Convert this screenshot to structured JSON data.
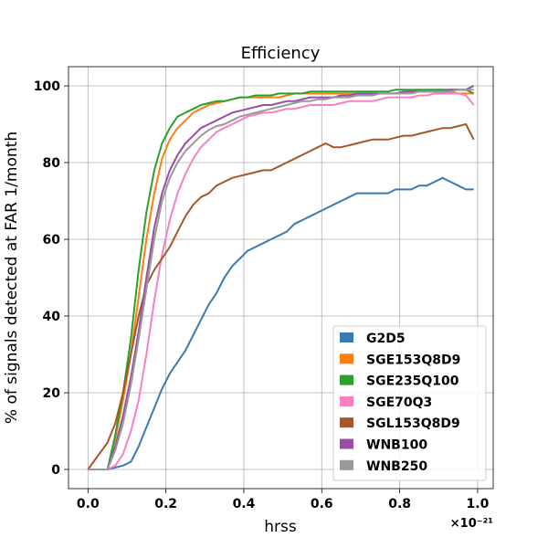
{
  "chart_data": {
    "type": "line",
    "title": "Efficiency",
    "xlabel": "hrss",
    "ylabel": "% of signals detected at FAR 1/month",
    "x_offset_label": "×10⁻²¹",
    "xlim": [
      -0.05,
      1.04
    ],
    "ylim": [
      -5,
      105
    ],
    "xticks": [
      0.0,
      0.2,
      0.4,
      0.6,
      0.8,
      1.0
    ],
    "xtick_labels": [
      "0.0",
      "0.2",
      "0.4",
      "0.6",
      "0.8",
      "1.0"
    ],
    "yticks": [
      0,
      20,
      40,
      60,
      80,
      100
    ],
    "ytick_labels": [
      "0",
      "20",
      "40",
      "60",
      "80",
      "100"
    ],
    "grid": true,
    "legend_position": "lower-right",
    "x": [
      0.0,
      0.05,
      0.07,
      0.09,
      0.11,
      0.13,
      0.15,
      0.17,
      0.19,
      0.21,
      0.23,
      0.25,
      0.27,
      0.29,
      0.31,
      0.33,
      0.35,
      0.37,
      0.39,
      0.41,
      0.43,
      0.45,
      0.47,
      0.49,
      0.51,
      0.53,
      0.55,
      0.57,
      0.59,
      0.61,
      0.63,
      0.65,
      0.67,
      0.69,
      0.71,
      0.73,
      0.75,
      0.77,
      0.79,
      0.81,
      0.83,
      0.85,
      0.87,
      0.89,
      0.91,
      0.93,
      0.95,
      0.97,
      0.99
    ],
    "series": [
      {
        "name": "G2D5",
        "color": "#3a7ab3",
        "values": [
          0,
          0,
          0.5,
          1,
          2,
          6,
          11,
          16,
          21,
          25,
          28,
          31,
          35,
          39,
          43,
          46,
          50,
          53,
          55,
          57,
          58,
          59,
          60,
          61,
          62,
          64,
          65,
          66,
          67,
          68,
          69,
          70,
          71,
          72,
          72,
          72,
          72,
          72,
          73,
          73,
          73,
          74,
          74,
          75,
          76,
          75,
          74,
          73,
          73
        ]
      },
      {
        "name": "SGE153Q8D9",
        "color": "#ff7f0e",
        "values": [
          0,
          0,
          8,
          18,
          30,
          45,
          60,
          72,
          81,
          86,
          89,
          91,
          93,
          94,
          95,
          95.5,
          96,
          96.5,
          97,
          97,
          97,
          97,
          97,
          97,
          97.5,
          98,
          98,
          98,
          98,
          98,
          98,
          98,
          98,
          98,
          98,
          98,
          98,
          98,
          98,
          98.5,
          98.5,
          98.5,
          98.5,
          98.5,
          98.5,
          98.5,
          98,
          98,
          98
        ]
      },
      {
        "name": "SGE235Q100",
        "color": "#2ca02c",
        "values": [
          0,
          0,
          9,
          20,
          34,
          52,
          67,
          78,
          85,
          89,
          92,
          93,
          94,
          95,
          95.5,
          96,
          96,
          96.5,
          97,
          97,
          97.5,
          97.5,
          97.5,
          98,
          98,
          98,
          98,
          98.5,
          98.5,
          98.5,
          98.5,
          98.5,
          98.5,
          98.5,
          98.5,
          98.5,
          98.5,
          98.5,
          99,
          99,
          99,
          99,
          99,
          99,
          99,
          99,
          99,
          99,
          98
        ]
      },
      {
        "name": "SGE70Q3",
        "color": "#f781bf",
        "values": [
          0,
          0,
          1,
          4,
          10,
          18,
          30,
          44,
          56,
          65,
          72,
          77,
          81,
          84,
          86,
          88,
          89,
          90,
          91,
          92,
          92.5,
          93,
          93,
          93.5,
          94,
          94,
          94.5,
          95,
          95,
          95,
          95,
          95.5,
          96,
          96,
          96,
          96,
          96.5,
          97,
          97,
          97,
          97,
          97.5,
          97.5,
          98,
          98,
          98,
          98,
          97.5,
          95
        ]
      },
      {
        "name": "SGL153Q8D9",
        "color": "#a65628",
        "values": [
          0,
          7,
          12,
          20,
          30,
          40,
          48,
          52,
          55,
          58,
          62,
          66,
          69,
          71,
          72,
          74,
          75,
          76,
          76.5,
          77,
          77.5,
          78,
          78,
          79,
          80,
          81,
          82,
          83,
          84,
          85,
          84,
          84,
          84.5,
          85,
          85.5,
          86,
          86,
          86,
          86.5,
          87,
          87,
          87.5,
          88,
          88.5,
          89,
          89,
          89.5,
          90,
          86
        ]
      },
      {
        "name": "WNB100",
        "color": "#984ea3",
        "values": [
          0,
          0,
          6,
          14,
          24,
          36,
          50,
          63,
          72,
          78,
          82,
          85,
          87,
          89,
          90,
          91,
          92,
          93,
          93.5,
          94,
          94.5,
          95,
          95,
          95.5,
          96,
          96,
          96.5,
          97,
          97,
          97,
          97,
          97.5,
          97.5,
          98,
          98,
          98,
          98,
          98,
          98,
          98.5,
          98.5,
          98.5,
          98.5,
          98.5,
          98.5,
          99,
          99,
          99,
          100
        ]
      },
      {
        "name": "WNB250",
        "color": "#999999",
        "values": [
          0,
          0,
          5,
          12,
          22,
          34,
          47,
          60,
          70,
          76,
          80,
          83,
          85,
          87,
          88.5,
          89.5,
          90,
          91,
          92,
          92.5,
          93,
          93.5,
          94,
          94.5,
          95,
          95.5,
          96,
          96,
          96.5,
          96.5,
          97,
          97,
          97,
          97.5,
          97.5,
          97.5,
          98,
          98,
          98,
          98,
          98,
          98.5,
          98.5,
          98.5,
          98.5,
          98.5,
          99,
          99,
          99
        ]
      }
    ]
  }
}
